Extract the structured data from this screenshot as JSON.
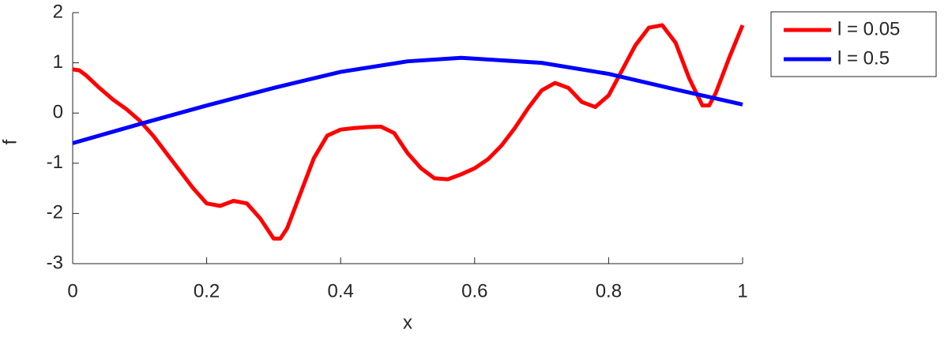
{
  "chart_data": {
    "type": "line",
    "xlabel": "x",
    "ylabel": "f",
    "xlim": [
      0,
      1
    ],
    "xticks": [
      0,
      0.2,
      0.4,
      0.6,
      0.8,
      1
    ],
    "ylim": [
      -3,
      2
    ],
    "yticks": [
      -3,
      -2,
      -1,
      0,
      1,
      2
    ],
    "grid": false,
    "legend": "outside-top-right",
    "series": [
      {
        "name": "l = 0.05",
        "color": "#ff0000",
        "x": [
          0,
          0.01,
          0.02,
          0.04,
          0.06,
          0.08,
          0.1,
          0.12,
          0.14,
          0.16,
          0.18,
          0.2,
          0.22,
          0.24,
          0.26,
          0.28,
          0.3,
          0.31,
          0.32,
          0.34,
          0.36,
          0.38,
          0.4,
          0.42,
          0.44,
          0.46,
          0.48,
          0.5,
          0.52,
          0.54,
          0.56,
          0.58,
          0.6,
          0.62,
          0.64,
          0.66,
          0.68,
          0.7,
          0.72,
          0.74,
          0.76,
          0.78,
          0.8,
          0.82,
          0.84,
          0.86,
          0.88,
          0.9,
          0.92,
          0.94,
          0.95,
          0.96,
          0.98,
          1
        ],
        "values": [
          0.87,
          0.85,
          0.75,
          0.5,
          0.27,
          0.08,
          -0.15,
          -0.45,
          -0.8,
          -1.15,
          -1.5,
          -1.8,
          -1.85,
          -1.75,
          -1.8,
          -2.1,
          -2.5,
          -2.5,
          -2.3,
          -1.6,
          -0.9,
          -0.45,
          -0.33,
          -0.3,
          -0.28,
          -0.27,
          -0.4,
          -0.8,
          -1.1,
          -1.3,
          -1.32,
          -1.22,
          -1.1,
          -0.92,
          -0.65,
          -0.3,
          0.1,
          0.45,
          0.6,
          0.5,
          0.22,
          0.12,
          0.35,
          0.85,
          1.35,
          1.7,
          1.75,
          1.4,
          0.7,
          0.15,
          0.15,
          0.4,
          1.1,
          1.75
        ]
      },
      {
        "name": "l = 0.5",
        "color": "#0000ff",
        "x": [
          0,
          0.1,
          0.2,
          0.3,
          0.4,
          0.5,
          0.58,
          0.7,
          0.8,
          0.9,
          1
        ],
        "values": [
          -0.6,
          -0.22,
          0.15,
          0.5,
          0.82,
          1.03,
          1.1,
          1.0,
          0.78,
          0.47,
          0.17
        ]
      }
    ]
  }
}
